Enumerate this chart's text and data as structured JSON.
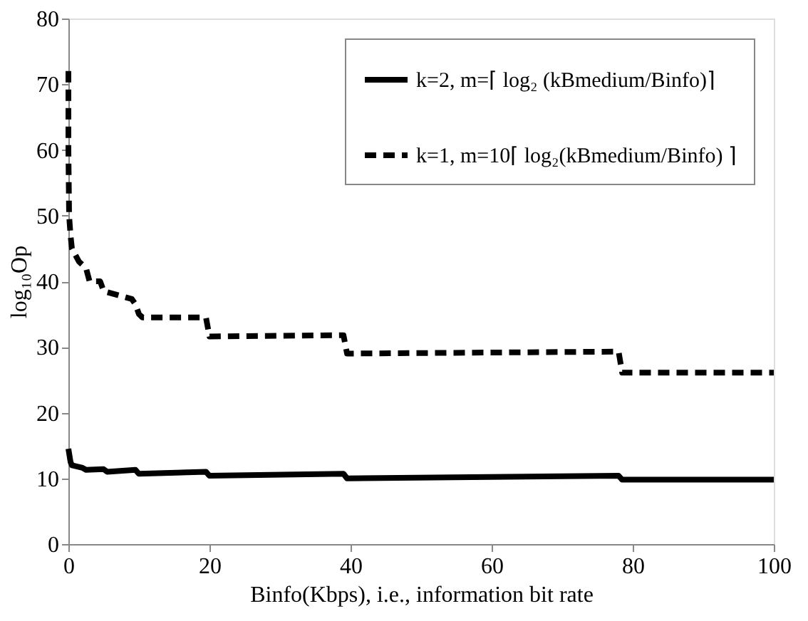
{
  "chart_data": {
    "type": "line",
    "xlabel": "Binfo(Kbps), i.e., information bit rate",
    "ylabel": "log₁₀Op",
    "xlim": [
      0,
      100
    ],
    "xticks": [
      0,
      20,
      40,
      60,
      80,
      100
    ],
    "ylim": [
      0,
      80
    ],
    "yticks": [
      0,
      10,
      20,
      30,
      40,
      50,
      60,
      70,
      80
    ],
    "grid": false,
    "legend": "top right",
    "marker": "none",
    "series": [
      {
        "name": "k=2, m=⌈ log₂ (kBmedium/Binfo)⌉",
        "color": "#000000",
        "line_style": "solid",
        "x": [
          0,
          0.3,
          0.5,
          2,
          2.5,
          5,
          5.5,
          9.5,
          10,
          19.5,
          20,
          39,
          39.5,
          78,
          78.5,
          100
        ],
        "values": [
          14.5,
          12.5,
          12,
          11.6,
          11.3,
          11.4,
          11,
          11.3,
          10.7,
          11,
          10.4,
          10.7,
          10,
          10.4,
          9.8,
          9.8
        ]
      },
      {
        "name": "k=1, m=10⌈ log₂(kBmedium/Binfo) ⌉",
        "color": "#000000",
        "line_style": "dashed",
        "x": [
          0,
          0,
          0.1,
          0.3,
          0.5,
          1,
          1.5,
          2.5,
          3,
          4.5,
          5,
          9,
          9.5,
          10,
          10.5,
          19.5,
          20,
          39,
          39.5,
          78,
          78.5,
          100
        ],
        "values": [
          72,
          60,
          50,
          47,
          45,
          44,
          43,
          42,
          40,
          40,
          38.5,
          37.3,
          36.5,
          35,
          34.5,
          34.5,
          31.6,
          31.8,
          29,
          29.3,
          26.1,
          26.1
        ]
      }
    ]
  }
}
